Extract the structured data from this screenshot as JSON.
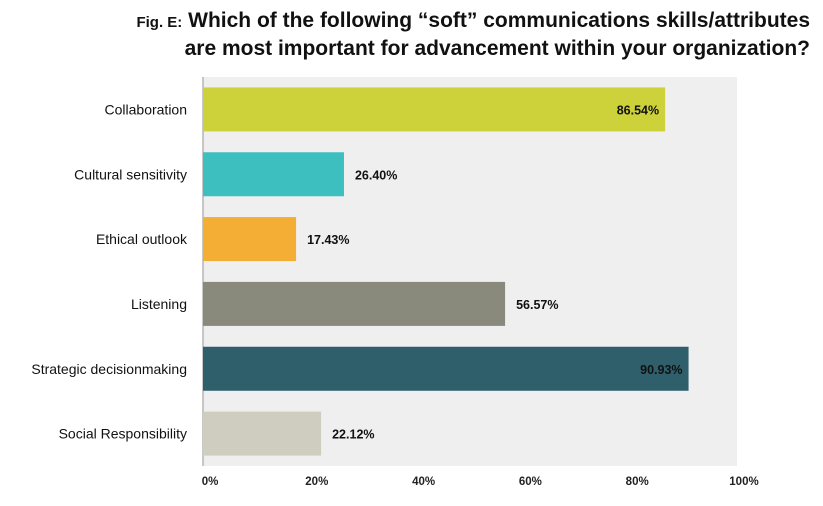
{
  "title": {
    "prefix": "Fig. E:",
    "line1": "Which of the following “soft” communications skills/attributes",
    "line2": "are most important for advancement within your organization?"
  },
  "chart_data": {
    "type": "bar",
    "orientation": "horizontal",
    "categories": [
      "Collaboration",
      "Cultural sensitivity",
      "Ethical outlook",
      "Listening",
      "Strategic decisionmaking",
      "Social Responsibility"
    ],
    "values": [
      86.54,
      26.4,
      17.43,
      56.57,
      90.93,
      22.12
    ],
    "value_labels": [
      "86.54%",
      "26.40%",
      "17.43%",
      "56.57%",
      "90.93%",
      "22.12%"
    ],
    "label_inside": [
      true,
      false,
      false,
      false,
      true,
      false
    ],
    "colors": [
      "#cdd23b",
      "#3dbfc0",
      "#f4ad35",
      "#8a8a7c",
      "#2e5f6b",
      "#cfcdc0"
    ],
    "xlim": [
      0,
      100
    ],
    "xticks": [
      "0%",
      "20%",
      "40%",
      "60%",
      "80%",
      "100%"
    ],
    "xtick_values": [
      0,
      20,
      40,
      60,
      80,
      100
    ],
    "grid": false,
    "plot_background": "#efefef"
  }
}
